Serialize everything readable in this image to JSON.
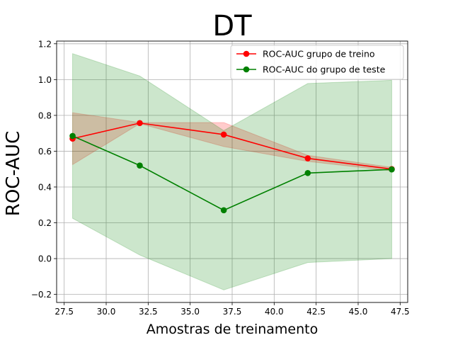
{
  "chart_data": {
    "type": "line",
    "title": "DT",
    "xlabel": "Amostras de treinamento",
    "ylabel": "ROC-AUC",
    "xlim": [
      27.05,
      47.95
    ],
    "ylim": [
      -0.245,
      1.215
    ],
    "xticks": [
      27.5,
      30.0,
      32.5,
      35.0,
      37.5,
      40.0,
      42.5,
      45.0,
      47.5
    ],
    "xtick_labels": [
      "27.5",
      "30.0",
      "32.5",
      "35.0",
      "37.5",
      "40.0",
      "42.5",
      "45.0",
      "47.5"
    ],
    "yticks": [
      -0.2,
      0.0,
      0.2,
      0.4,
      0.6,
      0.8,
      1.0,
      1.2
    ],
    "ytick_labels": [
      "−0.2",
      "0.0",
      "0.2",
      "0.4",
      "0.6",
      "0.8",
      "1.0",
      "1.2"
    ],
    "grid": true,
    "legend_position": "top-right",
    "x": [
      28,
      32,
      37,
      42,
      47
    ],
    "series": [
      {
        "name": "ROC-AUC grupo de treino",
        "color": "#ff0000",
        "values": [
          0.67,
          0.757,
          0.693,
          0.56,
          0.5
        ],
        "band_upper": [
          0.815,
          0.76,
          0.76,
          0.577,
          0.51
        ],
        "band_lower": [
          0.525,
          0.754,
          0.626,
          0.543,
          0.49
        ]
      },
      {
        "name": "ROC-AUC do grupo de teste",
        "color": "#008000",
        "values": [
          0.685,
          0.52,
          0.27,
          0.478,
          0.498
        ],
        "band_upper": [
          1.145,
          1.02,
          0.715,
          0.978,
          0.996
        ],
        "band_lower": [
          0.225,
          0.02,
          -0.175,
          -0.022,
          0.0
        ]
      }
    ]
  }
}
